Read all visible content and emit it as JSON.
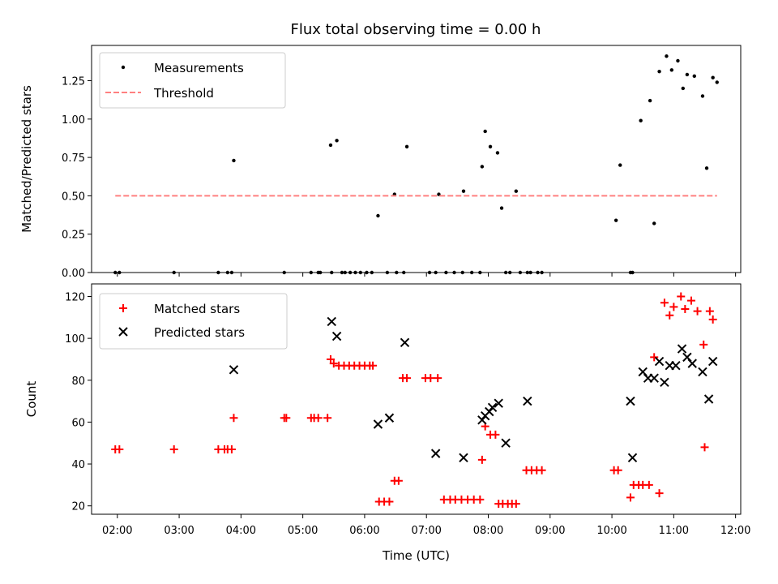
{
  "figure_title": "Flux total observing time = 0.00 h",
  "colors": {
    "measurement": "#000000",
    "threshold": "#ff8080",
    "matched": "#ff0000",
    "predicted": "#000000"
  },
  "chart_data": [
    {
      "type": "scatter",
      "title": "",
      "xlabel": "",
      "ylabel": "Matched/Predicted stars",
      "xlim": [
        "01:35",
        "12:05"
      ],
      "ylim": [
        0,
        1.48
      ],
      "xticks": [
        "02:00",
        "03:00",
        "04:00",
        "05:00",
        "06:00",
        "07:00",
        "08:00",
        "09:00",
        "10:00",
        "11:00",
        "12:00"
      ],
      "yticks": [
        "0.00",
        "0.25",
        "0.50",
        "0.75",
        "1.00",
        "1.25"
      ],
      "legend": {
        "placement": "top-left",
        "entries": [
          "Measurements",
          "Threshold"
        ]
      },
      "series": [
        {
          "name": "Measurements",
          "marker": "dot",
          "x": [
            "01:58",
            "02:02",
            "02:55",
            "03:38",
            "03:47",
            "03:51",
            "03:53",
            "04:42",
            "05:08",
            "05:15",
            "05:17",
            "05:27",
            "05:28",
            "05:33",
            "05:38",
            "05:41",
            "05:46",
            "05:51",
            "05:56",
            "06:02",
            "06:07",
            "06:13",
            "06:22",
            "06:29",
            "06:31",
            "06:38",
            "06:41",
            "07:03",
            "07:09",
            "07:12",
            "07:19",
            "07:27",
            "07:35",
            "07:36",
            "07:44",
            "07:52",
            "07:54",
            "07:57",
            "08:02",
            "08:09",
            "08:13",
            "08:17",
            "08:21",
            "08:27",
            "08:31",
            "08:38",
            "08:41",
            "08:48",
            "08:52",
            "10:04",
            "10:08",
            "10:18",
            "10:20",
            "10:28",
            "10:37",
            "10:41",
            "10:46",
            "10:53",
            "10:58",
            "11:04",
            "11:09",
            "11:13",
            "11:20",
            "11:28",
            "11:32",
            "11:38",
            "11:42"
          ],
          "y": [
            0.0,
            0.0,
            0.0,
            0.0,
            0.0,
            0.0,
            0.73,
            0.0,
            0.0,
            0.0,
            0.0,
            0.83,
            0.0,
            0.86,
            0.0,
            0.0,
            0.0,
            0.0,
            0.0,
            0.0,
            0.0,
            0.37,
            0.0,
            0.51,
            0.0,
            0.0,
            0.82,
            0.0,
            0.0,
            0.51,
            0.0,
            0.0,
            0.0,
            0.53,
            0.0,
            0.0,
            0.69,
            0.92,
            0.82,
            0.78,
            0.42,
            0.0,
            0.0,
            0.53,
            0.0,
            0.0,
            0.0,
            0.0,
            0.0,
            0.34,
            0.7,
            0.0,
            0.0,
            0.99,
            1.12,
            0.32,
            1.31,
            1.41,
            1.32,
            1.38,
            1.2,
            1.29,
            1.28,
            1.15,
            0.68,
            1.27,
            1.24
          ]
        },
        {
          "name": "Threshold",
          "type": "line",
          "style": "dashed",
          "x": [
            "01:58",
            "11:42"
          ],
          "y": [
            0.5,
            0.5
          ]
        }
      ]
    },
    {
      "type": "scatter",
      "title": "",
      "xlabel": "Time (UTC)",
      "ylabel": "Count",
      "xlim": [
        "01:35",
        "12:05"
      ],
      "ylim": [
        16,
        126
      ],
      "xticks": [
        "02:00",
        "03:00",
        "04:00",
        "05:00",
        "06:00",
        "07:00",
        "08:00",
        "09:00",
        "10:00",
        "11:00",
        "12:00"
      ],
      "yticks": [
        "20",
        "40",
        "60",
        "80",
        "100",
        "120"
      ],
      "legend": {
        "placement": "top-left",
        "entries": [
          "Matched stars",
          "Predicted stars"
        ]
      },
      "series": [
        {
          "name": "Matched stars",
          "marker": "plus",
          "x": [
            "01:58",
            "02:02",
            "02:55",
            "03:38",
            "03:44",
            "03:47",
            "03:51",
            "03:53",
            "04:42",
            "04:44",
            "05:08",
            "05:11",
            "05:15",
            "05:24",
            "05:27",
            "05:30",
            "05:35",
            "05:40",
            "05:45",
            "05:50",
            "05:55",
            "06:00",
            "06:05",
            "06:08",
            "06:14",
            "06:19",
            "06:24",
            "06:29",
            "06:33",
            "06:37",
            "06:41",
            "06:59",
            "07:04",
            "07:11",
            "07:17",
            "07:23",
            "07:28",
            "07:34",
            "07:40",
            "07:46",
            "07:52",
            "07:54",
            "07:57",
            "08:02",
            "08:07",
            "08:10",
            "08:14",
            "08:19",
            "08:23",
            "08:27",
            "08:37",
            "08:42",
            "08:47",
            "08:52",
            "10:02",
            "10:06",
            "10:18",
            "10:21",
            "10:26",
            "10:30",
            "10:36",
            "10:41",
            "10:46",
            "10:51",
            "10:56",
            "11:00",
            "11:07",
            "11:11",
            "11:17",
            "11:23",
            "11:29",
            "11:30",
            "11:35",
            "11:38"
          ],
          "y": [
            47,
            47,
            47,
            47,
            47,
            47,
            47,
            62,
            62,
            62,
            62,
            62,
            62,
            62,
            90,
            88,
            87,
            87,
            87,
            87,
            87,
            87,
            87,
            87,
            22,
            22,
            22,
            32,
            32,
            81,
            81,
            81,
            81,
            81,
            23,
            23,
            23,
            23,
            23,
            23,
            23,
            42,
            58,
            54,
            54,
            21,
            21,
            21,
            21,
            21,
            37,
            37,
            37,
            37,
            37,
            37,
            24,
            30,
            30,
            30,
            30,
            91,
            26,
            117,
            111,
            115,
            120,
            114,
            118,
            113,
            97,
            48,
            113,
            109
          ]
        },
        {
          "name": "Predicted stars",
          "marker": "x",
          "x": [
            "03:53",
            "05:28",
            "05:33",
            "06:13",
            "06:24",
            "06:39",
            "07:09",
            "07:36",
            "07:54",
            "07:57",
            "08:01",
            "08:04",
            "08:10",
            "08:17",
            "08:38",
            "10:18",
            "10:20",
            "10:30",
            "10:35",
            "10:41",
            "10:46",
            "10:51",
            "10:56",
            "11:02",
            "11:08",
            "11:13",
            "11:18",
            "11:28",
            "11:34",
            "11:38"
          ],
          "y": [
            85,
            108,
            101,
            59,
            62,
            98,
            45,
            43,
            61,
            63,
            65,
            67,
            69,
            50,
            70,
            70,
            43,
            84,
            81,
            81,
            89,
            79,
            87,
            87,
            95,
            91,
            88,
            84,
            71,
            89
          ]
        }
      ]
    }
  ]
}
